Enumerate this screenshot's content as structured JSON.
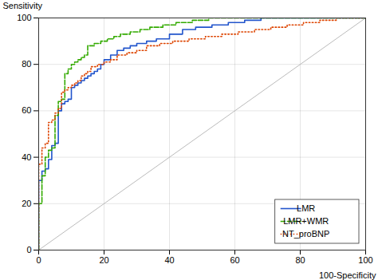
{
  "chart_data": {
    "type": "line",
    "xlabel": "100-Specificity",
    "ylabel": "Sensitivity",
    "xlim": [
      0,
      100
    ],
    "ylim": [
      0,
      100
    ],
    "xticks": [
      0,
      20,
      40,
      60,
      80,
      100
    ],
    "yticks": [
      0,
      20,
      40,
      60,
      80,
      100
    ],
    "grid": true,
    "legend": "lower right",
    "series": [
      {
        "color": "#bbbbbb",
        "line_style": "solid",
        "x": [
          0,
          100
        ],
        "values": [
          0,
          100
        ]
      },
      {
        "name": "LMR",
        "color": "#2255cc",
        "line_style": "solid",
        "x": [
          0,
          0,
          1,
          1,
          2,
          2,
          3,
          3,
          4,
          4,
          5,
          5,
          6,
          6,
          7,
          7,
          8,
          8,
          9,
          9,
          10,
          10,
          11,
          11,
          12,
          12,
          13,
          13,
          14,
          14,
          15,
          15,
          16,
          16,
          17,
          17,
          18,
          18,
          19,
          19,
          20,
          20,
          22,
          22,
          24,
          24,
          26,
          26,
          28,
          28,
          30,
          30,
          33,
          33,
          36,
          36,
          40,
          40,
          44,
          44,
          48,
          48,
          53,
          53,
          58,
          58,
          63,
          63,
          68,
          68,
          73,
          73,
          78,
          78,
          83,
          83,
          88,
          88,
          93,
          93,
          100
        ],
        "values": [
          0,
          30,
          30,
          34,
          34,
          35,
          35,
          39,
          39,
          45,
          45,
          46,
          46,
          60,
          60,
          63,
          63,
          64,
          64,
          65,
          65,
          70,
          70,
          71,
          71,
          72,
          72,
          73,
          73,
          74,
          74,
          75,
          75,
          76,
          76,
          77,
          77,
          78,
          78,
          80,
          80,
          82,
          82,
          84,
          84,
          86,
          86,
          87,
          87,
          88,
          88,
          89,
          89,
          90,
          90,
          91,
          91,
          93,
          93,
          95,
          95,
          96,
          96,
          97,
          97,
          98,
          98,
          99,
          99,
          100,
          100,
          100,
          100,
          100,
          100,
          100,
          100,
          100,
          100,
          100,
          100
        ]
      },
      {
        "name": "LMR+WMR",
        "color": "#33aa00",
        "line_style": "dashed",
        "x": [
          0,
          0,
          1,
          1,
          2,
          2,
          3,
          3,
          4,
          4,
          5,
          5,
          6,
          6,
          7,
          7,
          8,
          8,
          9,
          9,
          10,
          10,
          11,
          11,
          12,
          12,
          13,
          13,
          14,
          14,
          15,
          15,
          17,
          17,
          19,
          19,
          21,
          21,
          23,
          23,
          25,
          25,
          28,
          28,
          31,
          31,
          34,
          34,
          38,
          38,
          42,
          42,
          47,
          47,
          52,
          52,
          57,
          57,
          62,
          62,
          67,
          67,
          72,
          72,
          77,
          77,
          82,
          82,
          87,
          87,
          92,
          92,
          100
        ],
        "values": [
          0,
          20,
          20,
          32,
          32,
          40,
          40,
          43,
          43,
          44,
          44,
          58,
          58,
          64,
          64,
          65,
          65,
          76,
          76,
          78,
          78,
          80,
          80,
          81,
          81,
          82,
          82,
          83,
          83,
          84,
          84,
          88,
          88,
          89,
          89,
          90,
          90,
          91,
          91,
          92,
          92,
          93,
          93,
          94,
          94,
          95,
          95,
          96,
          96,
          97,
          97,
          98,
          98,
          99,
          99,
          100,
          100,
          100,
          100,
          100,
          100,
          100,
          100,
          100,
          100,
          100,
          100,
          100,
          100,
          100,
          100,
          100,
          100
        ]
      },
      {
        "name": "NT_proBNP",
        "color": "#dd4400",
        "line_style": "dotted",
        "x": [
          0,
          0,
          1,
          1,
          2,
          2,
          3,
          3,
          4,
          4,
          5,
          5,
          6,
          6,
          7,
          7,
          8,
          8,
          9,
          9,
          10,
          10,
          11,
          11,
          12,
          12,
          13,
          13,
          14,
          14,
          15,
          15,
          16,
          16,
          18,
          18,
          20,
          20,
          22,
          22,
          24,
          24,
          27,
          27,
          30,
          30,
          33,
          33,
          37,
          37,
          41,
          41,
          46,
          46,
          51,
          51,
          56,
          56,
          61,
          61,
          66,
          66,
          71,
          71,
          76,
          76,
          81,
          81,
          86,
          86,
          91,
          91,
          96,
          96,
          100
        ],
        "values": [
          0,
          37,
          37,
          44,
          44,
          46,
          46,
          55,
          55,
          56,
          56,
          59,
          59,
          61,
          61,
          68,
          68,
          69,
          69,
          70,
          70,
          71,
          71,
          72,
          72,
          73,
          73,
          75,
          75,
          76,
          76,
          77,
          77,
          79,
          79,
          80,
          80,
          81,
          81,
          82,
          82,
          84,
          84,
          85,
          85,
          86,
          86,
          88,
          88,
          89,
          89,
          90,
          90,
          91,
          91,
          92,
          92,
          93,
          93,
          94,
          94,
          95,
          95,
          96,
          96,
          97,
          97,
          98,
          98,
          99,
          99,
          100,
          100,
          100,
          100
        ]
      }
    ]
  }
}
